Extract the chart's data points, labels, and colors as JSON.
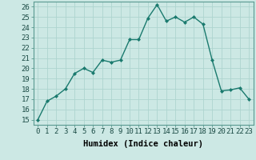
{
  "x": [
    0,
    1,
    2,
    3,
    4,
    5,
    6,
    7,
    8,
    9,
    10,
    11,
    12,
    13,
    14,
    15,
    16,
    17,
    18,
    19,
    20,
    21,
    22,
    23
  ],
  "y": [
    15,
    16.8,
    17.3,
    18,
    19.5,
    20,
    19.6,
    20.8,
    20.6,
    20.8,
    22.8,
    22.8,
    24.9,
    26.2,
    24.6,
    25.0,
    24.5,
    25.0,
    24.3,
    20.8,
    17.8,
    17.9,
    18.1,
    17.0
  ],
  "line_color": "#1a7a6e",
  "marker": "D",
  "marker_size": 2.0,
  "line_width": 1.0,
  "bg_color": "#cce8e4",
  "grid_color": "#aed4cf",
  "xlabel": "Humidex (Indice chaleur)",
  "xlabel_fontsize": 7.5,
  "xlabel_fontweight": "bold",
  "yticks": [
    15,
    16,
    17,
    18,
    19,
    20,
    21,
    22,
    23,
    24,
    25,
    26
  ],
  "xticks": [
    0,
    1,
    2,
    3,
    4,
    5,
    6,
    7,
    8,
    9,
    10,
    11,
    12,
    13,
    14,
    15,
    16,
    17,
    18,
    19,
    20,
    21,
    22,
    23
  ],
  "ylim": [
    14.5,
    26.5
  ],
  "xlim": [
    -0.5,
    23.5
  ],
  "tick_fontsize": 6.5,
  "font_family": "monospace"
}
